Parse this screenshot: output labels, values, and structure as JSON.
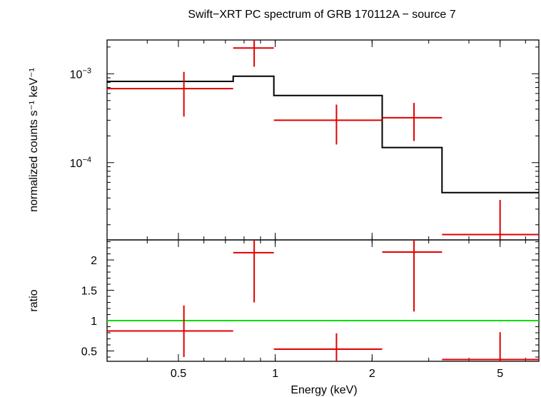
{
  "title": "Swift−XRT PC spectrum of GRB 170112A − source 7",
  "xlabel": "Energy (keV)",
  "colors": {
    "axis": "#000000",
    "data": "#e00000",
    "model": "#000000",
    "unity": "#00dd00"
  },
  "chart_data": [
    {
      "type": "scatter",
      "panel": "spectrum",
      "ylabel": "normalized counts s⁻¹ keV⁻¹",
      "xscale": "log",
      "yscale": "log",
      "xlim": [
        0.3,
        6.6
      ],
      "ylim": [
        1.35e-05,
        0.0024
      ],
      "x_ticks": [
        {
          "value": 0.5,
          "label": "0.5"
        },
        {
          "value": 1,
          "label": "1"
        },
        {
          "value": 2,
          "label": "2"
        },
        {
          "value": 5,
          "label": "5"
        }
      ],
      "y_ticks": [
        {
          "value": 0.001,
          "base": "10",
          "exp": "−3"
        },
        {
          "value": 0.0001,
          "base": "10",
          "exp": "−4"
        }
      ],
      "series": [
        {
          "role": "data",
          "points": [
            {
              "x": 0.52,
              "xlo": 0.3,
              "xhi": 0.74,
              "y": 0.00068,
              "ylo": 0.00033,
              "yhi": 0.00105
            },
            {
              "x": 0.86,
              "xlo": 0.74,
              "xhi": 0.99,
              "y": 0.00195,
              "ylo": 0.0012,
              "yhi": 0.0024
            },
            {
              "x": 1.55,
              "xlo": 0.99,
              "xhi": 2.15,
              "y": 0.0003,
              "ylo": 0.00016,
              "yhi": 0.00045
            },
            {
              "x": 2.7,
              "xlo": 2.15,
              "xhi": 3.3,
              "y": 0.00032,
              "ylo": 0.000175,
              "yhi": 0.00047
            },
            {
              "x": 5.0,
              "xlo": 3.3,
              "xhi": 6.6,
              "y": 1.55e-05,
              "ylo": 1.35e-05,
              "yhi": 3.8e-05
            }
          ]
        },
        {
          "role": "model",
          "steps": [
            {
              "xlo": 0.3,
              "xhi": 0.74,
              "y": 0.00082
            },
            {
              "xlo": 0.74,
              "xhi": 0.99,
              "y": 0.00094
            },
            {
              "xlo": 0.99,
              "xhi": 2.15,
              "y": 0.00057
            },
            {
              "xlo": 2.15,
              "xhi": 3.3,
              "y": 0.000148
            },
            {
              "xlo": 3.3,
              "xhi": 6.6,
              "y": 4.6e-05
            }
          ]
        }
      ]
    },
    {
      "type": "scatter",
      "panel": "ratio",
      "ylabel": "ratio",
      "xscale": "log",
      "xlim": [
        0.3,
        6.6
      ],
      "ylim": [
        0.33,
        2.33
      ],
      "reference_y": 1,
      "x_ticks": [
        {
          "value": 0.5,
          "label": "0.5"
        },
        {
          "value": 1,
          "label": "1"
        },
        {
          "value": 2,
          "label": "2"
        },
        {
          "value": 5,
          "label": "5"
        }
      ],
      "y_ticks": [
        {
          "value": 0.5,
          "label": "0.5"
        },
        {
          "value": 1,
          "label": "1"
        },
        {
          "value": 1.5,
          "label": "1.5"
        },
        {
          "value": 2,
          "label": "2"
        }
      ],
      "series": [
        {
          "role": "data",
          "points": [
            {
              "x": 0.52,
              "xlo": 0.3,
              "xhi": 0.74,
              "y": 0.83,
              "ylo": 0.4,
              "yhi": 1.25
            },
            {
              "x": 0.86,
              "xlo": 0.74,
              "xhi": 0.99,
              "y": 2.12,
              "ylo": 1.3,
              "yhi": 2.33
            },
            {
              "x": 1.55,
              "xlo": 0.99,
              "xhi": 2.15,
              "y": 0.53,
              "ylo": 0.28,
              "yhi": 0.79
            },
            {
              "x": 2.7,
              "xlo": 2.15,
              "xhi": 3.3,
              "y": 2.13,
              "ylo": 1.15,
              "yhi": 2.33
            },
            {
              "x": 5.0,
              "xlo": 3.3,
              "xhi": 6.6,
              "y": 0.36,
              "ylo": 0.28,
              "yhi": 0.81
            }
          ]
        }
      ]
    }
  ]
}
